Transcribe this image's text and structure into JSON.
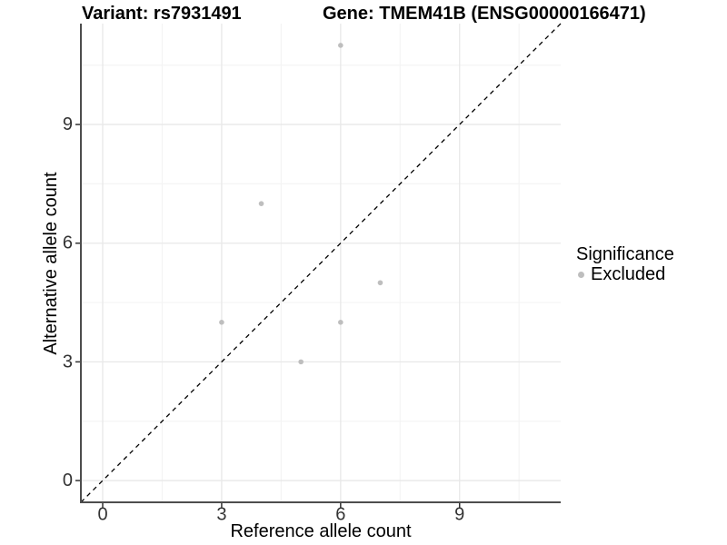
{
  "chart_data": {
    "type": "scatter",
    "title_left": "Variant: rs7931491",
    "title_right": "Gene: TMEM41B (ENSG00000166471)",
    "xlabel": "Reference allele count",
    "ylabel": "Alternative allele count",
    "xlim": [
      -0.55,
      11.55
    ],
    "ylim": [
      -0.55,
      11.55
    ],
    "x_major_ticks": [
      0,
      3,
      6,
      9
    ],
    "y_major_ticks": [
      0,
      3,
      6,
      9
    ],
    "x_minor_gridlines": [
      1.5,
      4.5,
      7.5,
      10.5
    ],
    "y_minor_gridlines": [
      1.5,
      4.5,
      7.5,
      10.5
    ],
    "grid": true,
    "legend": {
      "title": "Significance",
      "position": "right",
      "items": [
        {
          "label": "Excluded",
          "color": "#BEBEBE"
        }
      ]
    },
    "reference_line": {
      "type": "identity",
      "slope": 1,
      "intercept": 0,
      "style": "dashed",
      "color": "#000000"
    },
    "series": [
      {
        "name": "Excluded",
        "color": "#BEBEBE",
        "points": [
          [
            6,
            11
          ],
          [
            4,
            7
          ],
          [
            3,
            4
          ],
          [
            5,
            3
          ],
          [
            6,
            4
          ],
          [
            7,
            5
          ]
        ]
      }
    ],
    "colors": {
      "grid_major": "#E8E8E8",
      "grid_minor": "#F4F4F4",
      "axis_line": "#4D4D4D",
      "tick_mark": "#333333",
      "tick_label": "#333333",
      "point": "#BEBEBE"
    }
  }
}
